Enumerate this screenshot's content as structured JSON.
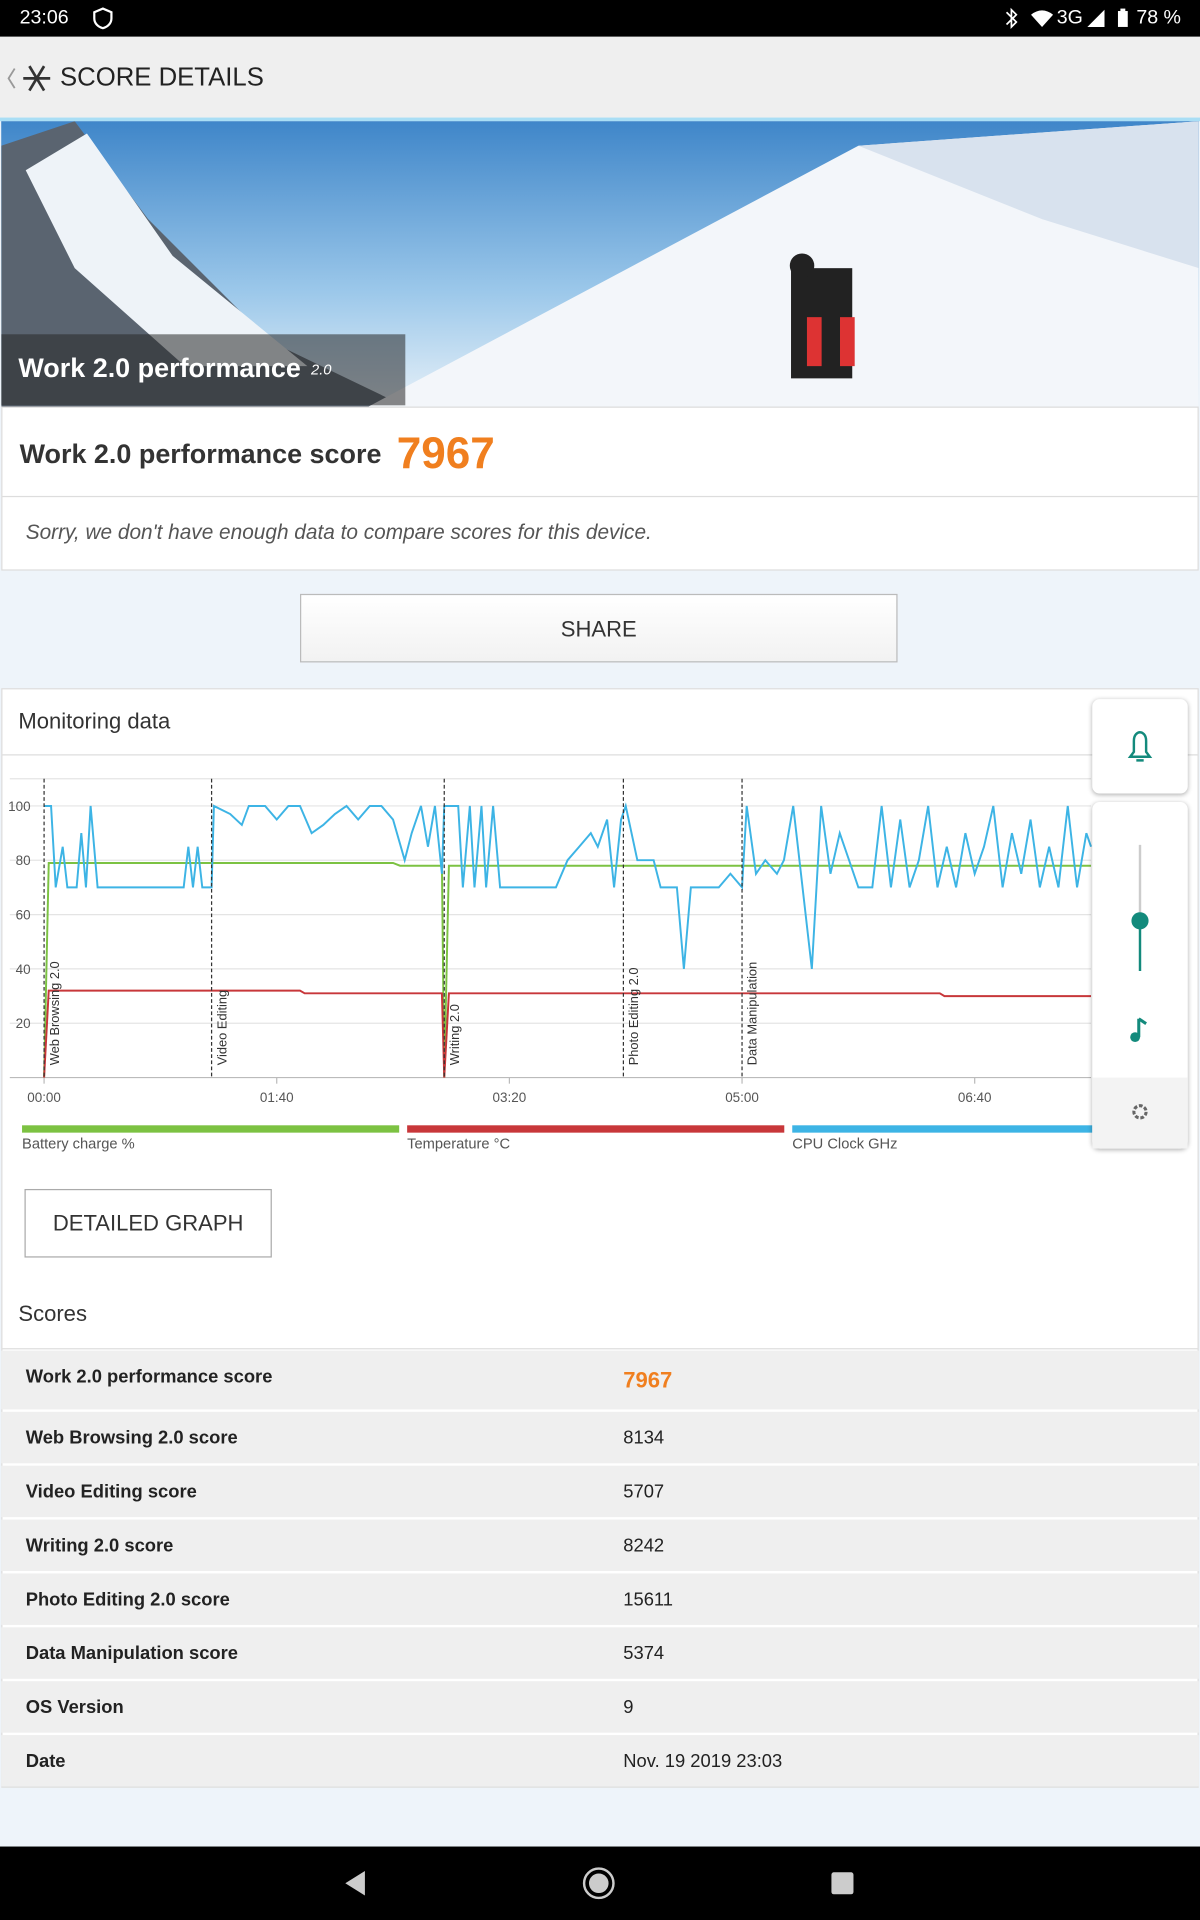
{
  "status_bar": {
    "time": "23:06",
    "network": "3G",
    "battery": "78 %"
  },
  "header": {
    "title": "SCORE DETAILS"
  },
  "banner": {
    "title": "Work 2.0 performance",
    "version": "2.0"
  },
  "score": {
    "label": "Work 2.0 performance score",
    "value": 7967
  },
  "compare_note": "Sorry, we don't have enough data to compare scores for this device.",
  "share_button": "SHARE",
  "monitoring": {
    "title": "Monitoring data",
    "detailed_button": "DETAILED GRAPH"
  },
  "chart_data": {
    "type": "line",
    "xlim": [
      0,
      450
    ],
    "xticks": [
      {
        "value": 0,
        "label": "00:00"
      },
      {
        "value": 100,
        "label": "01:40"
      },
      {
        "value": 200,
        "label": "03:20"
      },
      {
        "value": 300,
        "label": "05:00"
      },
      {
        "value": 400,
        "label": "06:40"
      }
    ],
    "ylim": [
      0,
      110
    ],
    "yticks": [
      20,
      40,
      60,
      80,
      100
    ],
    "grid": true,
    "markers": [
      {
        "x": 0,
        "label": "Web Browsing 2.0"
      },
      {
        "x": 72,
        "label": "Video Editing"
      },
      {
        "x": 172,
        "label": "Writing 2.0"
      },
      {
        "x": 249,
        "label": "Photo Editing 2.0"
      },
      {
        "x": 300,
        "label": "Data Manipulation"
      }
    ],
    "series": [
      {
        "name": "Battery charge %",
        "color": "#7cc242",
        "x": [
          0,
          2,
          150,
          153,
          171,
          172,
          174,
          450
        ],
        "values": [
          0,
          79,
          79,
          78,
          78,
          0,
          78,
          78
        ]
      },
      {
        "name": "Temperature °C",
        "color": "#c8373a",
        "x": [
          0,
          2,
          110,
          112,
          171,
          172,
          174,
          385,
          387,
          450
        ],
        "values": [
          0,
          32,
          32,
          31,
          31,
          0,
          31,
          31,
          30,
          30
        ]
      },
      {
        "name": "CPU Clock GHz",
        "color": "#3db4e5",
        "x": [
          0,
          3,
          5,
          8,
          10,
          14,
          16,
          18,
          20,
          23,
          27,
          60,
          62,
          64,
          66,
          68,
          72,
          73,
          80,
          85,
          88,
          95,
          100,
          105,
          110,
          115,
          120,
          125,
          130,
          135,
          140,
          145,
          150,
          155,
          158,
          162,
          165,
          168,
          171,
          172,
          178,
          180,
          183,
          185,
          188,
          190,
          193,
          196,
          220,
          225,
          230,
          235,
          238,
          242,
          245,
          248,
          250,
          255,
          262,
          265,
          272,
          275,
          278,
          285,
          290,
          295,
          300,
          302,
          306,
          310,
          315,
          318,
          322,
          326,
          330,
          334,
          338,
          342,
          346,
          350,
          356,
          360,
          364,
          368,
          372,
          376,
          380,
          384,
          388,
          392,
          396,
          400,
          404,
          408,
          412,
          416,
          420,
          424,
          428,
          432,
          436,
          440,
          444,
          448,
          450
        ],
        "values": [
          100,
          100,
          70,
          85,
          70,
          70,
          90,
          70,
          100,
          70,
          70,
          70,
          85,
          70,
          85,
          70,
          70,
          100,
          97,
          93,
          100,
          100,
          95,
          100,
          100,
          90,
          93,
          97,
          100,
          95,
          100,
          100,
          95,
          80,
          90,
          100,
          85,
          100,
          75,
          100,
          100,
          70,
          100,
          70,
          100,
          70,
          100,
          70,
          70,
          80,
          85,
          90,
          85,
          95,
          70,
          95,
          100,
          80,
          80,
          70,
          70,
          40,
          70,
          70,
          70,
          75,
          70,
          100,
          75,
          80,
          75,
          80,
          100,
          70,
          40,
          100,
          75,
          90,
          80,
          70,
          70,
          100,
          70,
          95,
          70,
          80,
          100,
          70,
          85,
          70,
          90,
          75,
          85,
          100,
          70,
          90,
          75,
          95,
          70,
          85,
          70,
          100,
          70,
          90,
          85
        ]
      }
    ]
  },
  "scores": {
    "title": "Scores",
    "rows": [
      [
        "Work 2.0 performance score",
        7967
      ],
      [
        "Web Browsing 2.0 score",
        8134
      ],
      [
        "Video Editing score",
        5707
      ],
      [
        "Writing 2.0 score",
        8242
      ],
      [
        "Photo Editing 2.0 score",
        15611
      ],
      [
        "Data Manipulation score",
        5374
      ],
      [
        "OS Version",
        9
      ],
      [
        "Date",
        "Nov. 19 2019 23:03"
      ]
    ]
  }
}
